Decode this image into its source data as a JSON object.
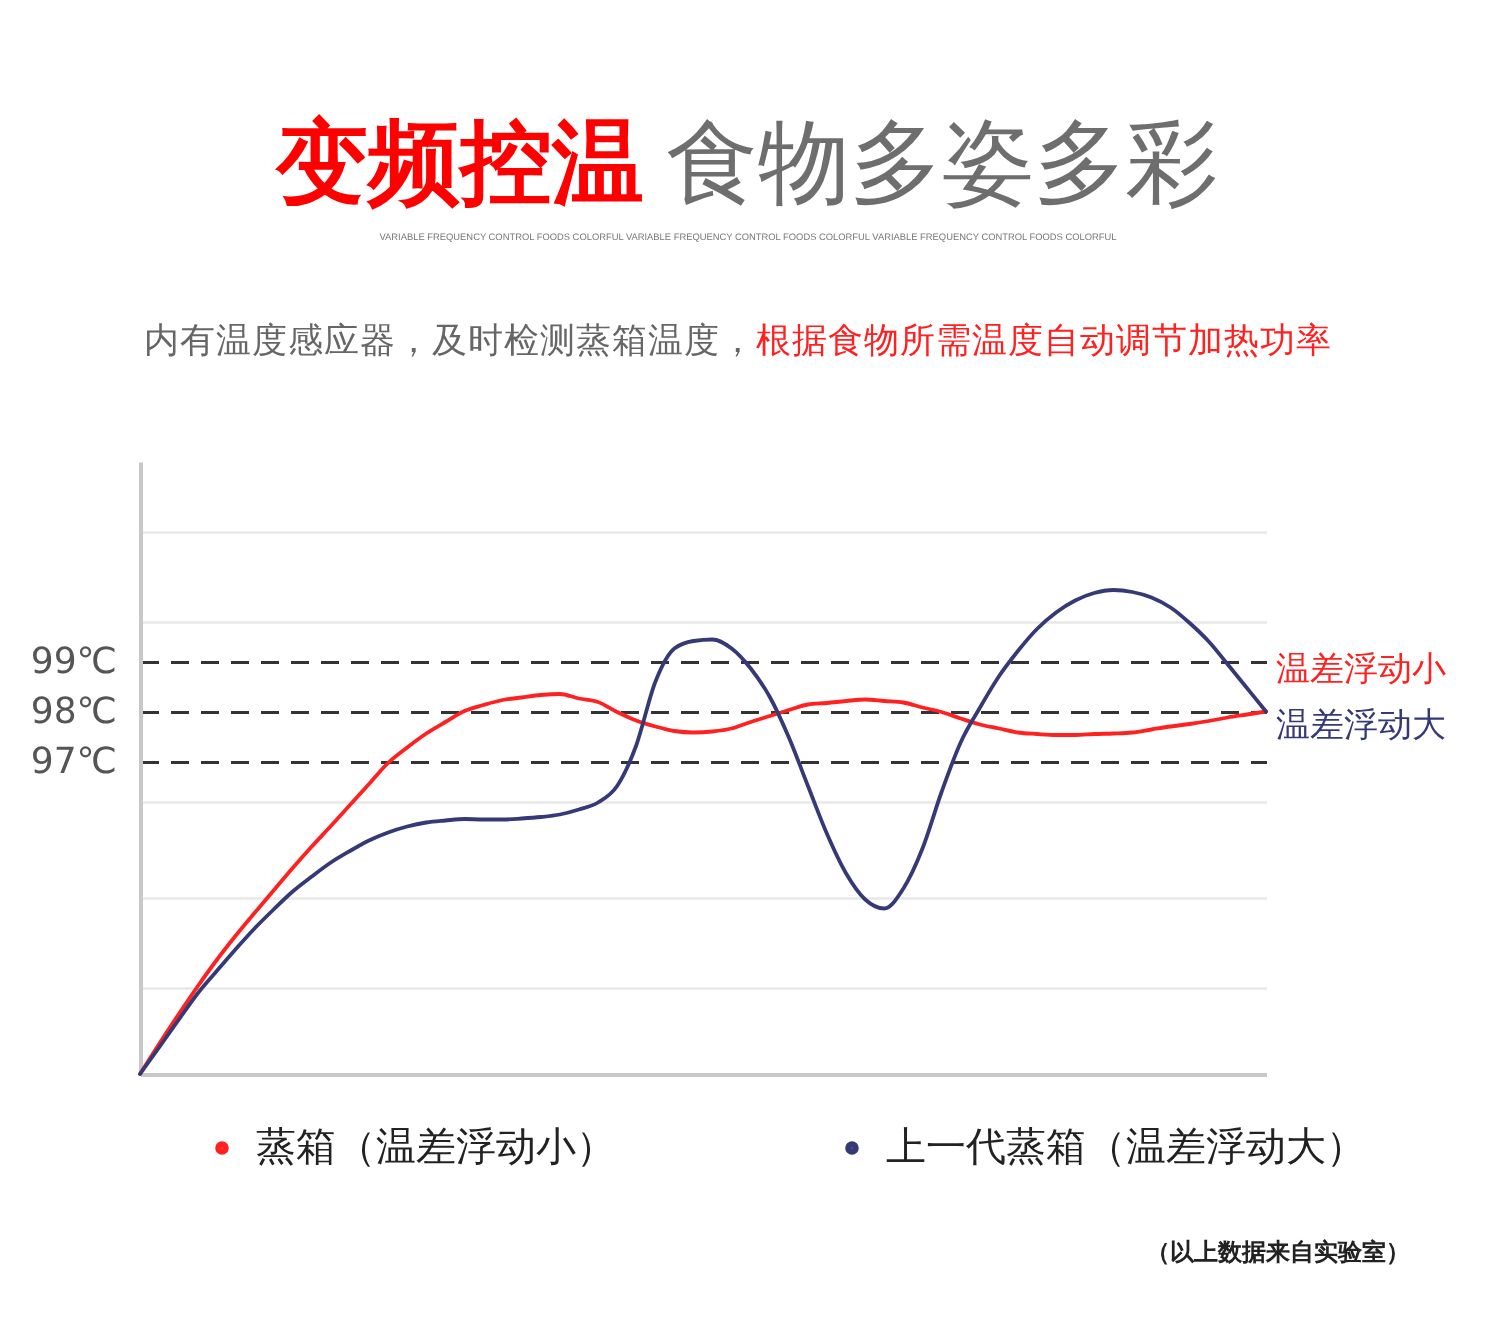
{
  "chart_data": {
    "type": "line",
    "title": "变频控温 食物多姿多彩",
    "subtitle": "内有温度感应器，及时检测蒸箱温度，根据食物所需温度自动调节加热功率",
    "categories": [
      null,
      null,
      null,
      null,
      null,
      null,
      null,
      null,
      null,
      null,
      null,
      null,
      null,
      null,
      null,
      null,
      null,
      null,
      null,
      null,
      null,
      null,
      null,
      null,
      null,
      null,
      null,
      null,
      null,
      null,
      null,
      null,
      null,
      null,
      null,
      null,
      null,
      null,
      null,
      null,
      null,
      null,
      null,
      null,
      null,
      null,
      null,
      null,
      null,
      null,
      null,
      null,
      null,
      null,
      null,
      null,
      null,
      null,
      null,
      null
    ],
    "series": [
      {
        "name": "蒸箱（温差浮动小）",
        "color": "#ff2020",
        "values": [
          90.75,
          91.35,
          91.93,
          92.49,
          93.02,
          93.51,
          93.97,
          94.42,
          94.87,
          95.3,
          95.71,
          96.13,
          96.55,
          96.97,
          97.28,
          97.56,
          97.79,
          98.01,
          98.13,
          98.23,
          98.28,
          98.33,
          98.35,
          98.26,
          98.19,
          97.99,
          97.82,
          97.7,
          97.61,
          97.58,
          97.6,
          97.66,
          97.79,
          97.91,
          98.03,
          98.14,
          98.17,
          98.21,
          98.24,
          98.21,
          98.18,
          98.08,
          97.99,
          97.86,
          97.74,
          97.66,
          97.58,
          97.55,
          97.53,
          97.53,
          97.55,
          97.56,
          97.58,
          97.64,
          97.7,
          97.75,
          97.81,
          97.88,
          97.94,
          98.0
        ]
      },
      {
        "name": "上一代蒸箱（温差浮动大）",
        "color": "#353a77",
        "values": [
          90.75,
          91.28,
          91.82,
          92.35,
          92.8,
          93.24,
          93.66,
          94.04,
          94.4,
          94.7,
          94.98,
          95.21,
          95.42,
          95.58,
          95.7,
          95.78,
          95.82,
          95.85,
          95.84,
          95.84,
          95.86,
          95.89,
          95.94,
          96.04,
          96.18,
          96.51,
          97.32,
          98.59,
          99.26,
          99.41,
          99.44,
          99.26,
          98.86,
          98.29,
          97.48,
          96.51,
          95.55,
          94.76,
          94.24,
          94.06,
          94.46,
          95.26,
          96.39,
          97.38,
          98.07,
          98.7,
          99.21,
          99.65,
          99.98,
          100.22,
          100.37,
          100.43,
          100.39,
          100.28,
          100.08,
          99.77,
          99.4,
          98.94,
          98.47,
          98.0
        ]
      }
    ],
    "ylim": [
      90.75,
      103.0
    ],
    "yticks": [
      {
        "value": 92.5,
        "label": null
      },
      {
        "value": 94.3,
        "label": null
      },
      {
        "value": 96.2,
        "label": null
      },
      {
        "value": 97,
        "label": "97℃"
      },
      {
        "value": 98,
        "label": "98℃"
      },
      {
        "value": 99,
        "label": "99℃"
      },
      {
        "value": 99.8,
        "label": null
      },
      {
        "value": 101.6,
        "label": null
      }
    ],
    "tick_labels": "y",
    "grid": "y",
    "annotations": [
      "VARIABLE FREQUENCY CONTROL FOODS COLORFUL VARIABLE FREQUENCY CONTROL FOODS COLORFUL VARIABLE FREQUENCY CONTROL FOODS COLORFUL",
      "温差浮动小",
      "温差浮动大",
      "（以上数据来自实验室）"
    ],
    "legend": "bottom",
    "marker": "none",
    "line_style": "solid"
  }
}
